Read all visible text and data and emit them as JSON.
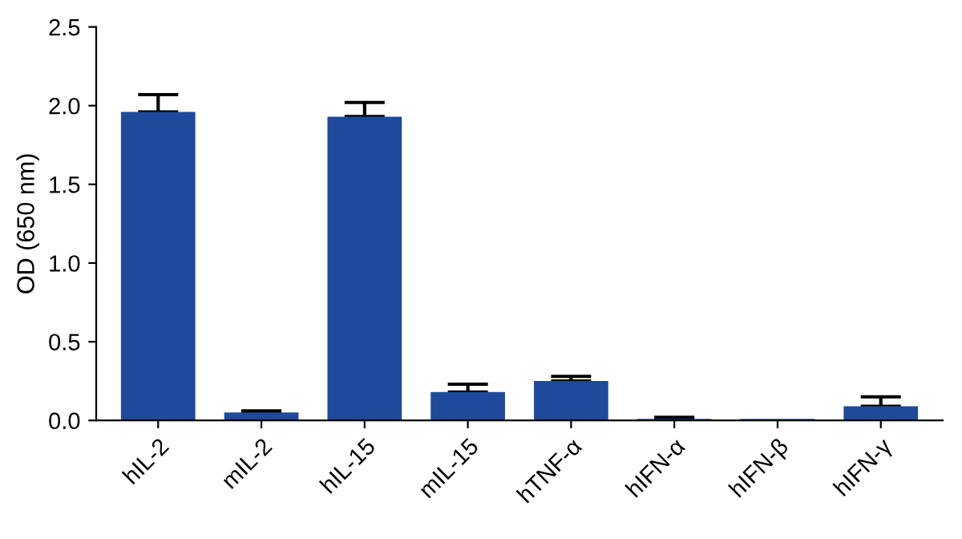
{
  "chart_data": {
    "type": "bar",
    "ylabel": "OD (650 nm)",
    "categories": [
      "hIL-2",
      "mIL-2",
      "hIL-15",
      "mIL-15",
      "hTNF-α",
      "hIFN-α",
      "hIFN-β",
      "hIFN-γ"
    ],
    "values": [
      1.96,
      0.05,
      1.93,
      0.18,
      0.25,
      0.01,
      0.01,
      0.09
    ],
    "errors": [
      [
        1.96,
        2.07
      ],
      [
        0.05,
        0.06
      ],
      [
        1.93,
        2.02
      ],
      [
        0.18,
        0.23
      ],
      [
        0.25,
        0.28
      ],
      [
        0.01,
        0.02
      ],
      null,
      [
        0.09,
        0.15
      ]
    ],
    "color": "#1f4a9b",
    "ylim": [
      0,
      2.5
    ],
    "yticks": [
      {
        "value": 0,
        "label": "0.0"
      },
      0.5,
      {
        "value": 1,
        "label": "1.0"
      },
      1.5,
      {
        "value": 2,
        "label": "2.0"
      },
      2.5
    ],
    "grid": false
  }
}
